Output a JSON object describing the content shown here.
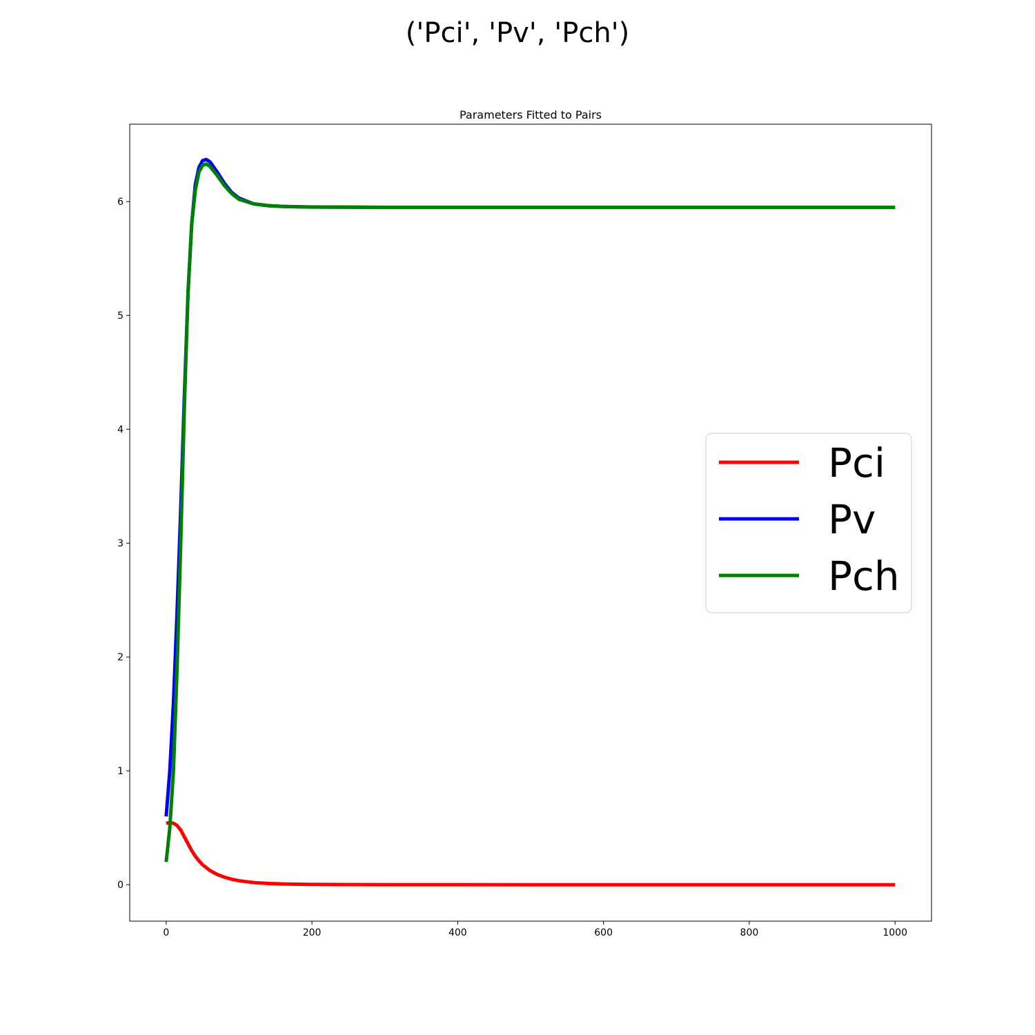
{
  "figure": {
    "suptitle": "('Pci', 'Pv', 'Pch')"
  },
  "chart_data": {
    "type": "line",
    "title": "Parameters Fitted to Pairs",
    "xlabel": "",
    "ylabel": "",
    "xlim": [
      -50,
      1050
    ],
    "ylim": [
      -0.32,
      6.68
    ],
    "xticks": [
      0,
      200,
      400,
      600,
      800,
      1000
    ],
    "yticks": [
      0,
      1,
      2,
      3,
      4,
      5,
      6
    ],
    "grid": false,
    "legend_position": "center-right",
    "series": [
      {
        "name": "Pci",
        "color": "#ff0000",
        "x": [
          0,
          5,
          10,
          15,
          20,
          25,
          30,
          35,
          40,
          45,
          50,
          60,
          70,
          80,
          90,
          100,
          120,
          140,
          160,
          180,
          200,
          250,
          300,
          400,
          600,
          800,
          1000
        ],
        "y": [
          0.54,
          0.545,
          0.54,
          0.52,
          0.48,
          0.42,
          0.36,
          0.3,
          0.25,
          0.21,
          0.175,
          0.125,
          0.09,
          0.066,
          0.048,
          0.035,
          0.019,
          0.011,
          0.0065,
          0.004,
          0.0025,
          0.001,
          0.0004,
          0.0001,
          0,
          0,
          0
        ]
      },
      {
        "name": "Pv",
        "color": "#0000ff",
        "x": [
          0,
          5,
          10,
          15,
          20,
          25,
          30,
          35,
          40,
          45,
          50,
          55,
          60,
          70,
          80,
          90,
          100,
          120,
          140,
          160,
          180,
          200,
          250,
          300,
          400,
          600,
          800,
          1000
        ],
        "y": [
          0.6,
          1.0,
          1.6,
          2.4,
          3.3,
          4.3,
          5.2,
          5.8,
          6.15,
          6.3,
          6.36,
          6.37,
          6.35,
          6.26,
          6.16,
          6.08,
          6.03,
          5.98,
          5.965,
          5.958,
          5.955,
          5.953,
          5.951,
          5.95,
          5.95,
          5.95,
          5.95,
          5.95
        ]
      },
      {
        "name": "Pch",
        "color": "#008000",
        "x": [
          0,
          5,
          10,
          15,
          20,
          25,
          30,
          35,
          40,
          45,
          50,
          55,
          60,
          70,
          80,
          90,
          100,
          120,
          140,
          160,
          180,
          200,
          250,
          300,
          400,
          600,
          800,
          1000
        ],
        "y": [
          0.2,
          0.5,
          1.0,
          1.9,
          3.0,
          4.2,
          5.2,
          5.8,
          6.1,
          6.26,
          6.32,
          6.33,
          6.31,
          6.23,
          6.14,
          6.07,
          6.02,
          5.98,
          5.964,
          5.957,
          5.954,
          5.952,
          5.951,
          5.95,
          5.95,
          5.95,
          5.95,
          5.95
        ]
      }
    ]
  }
}
